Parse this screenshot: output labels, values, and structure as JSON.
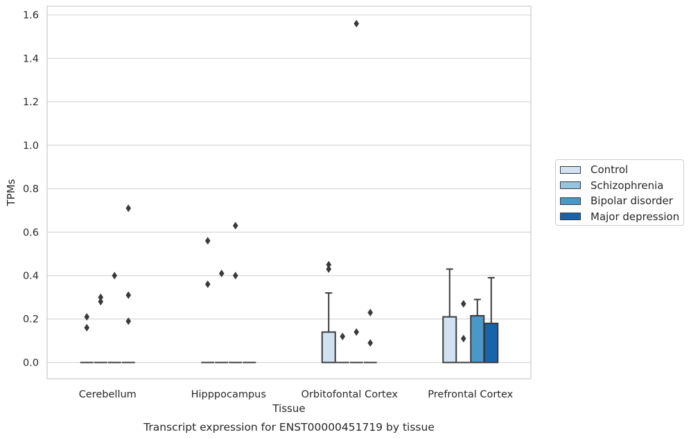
{
  "chart_data": {
    "type": "boxplot",
    "title": "Transcript expression for ENST00000451719 by tissue",
    "xlabel": "Tissue",
    "ylabel": "TPMs",
    "ylim": [
      -0.075,
      1.64
    ],
    "yticks": [
      "0.0",
      "0.2",
      "0.4",
      "0.6",
      "0.8",
      "1.0",
      "1.2",
      "1.4",
      "1.6"
    ],
    "ytick_values": [
      0,
      0.2,
      0.4,
      0.6,
      0.8,
      1.0,
      1.2,
      1.4,
      1.6
    ],
    "grid": true,
    "legend_position": "right",
    "categories": [
      "Cerebellum",
      "Hipppocampus",
      "Orbitofontal Cortex",
      "Prefrontal Cortex"
    ],
    "series": [
      {
        "name": "Control",
        "color": "#d0e1f2",
        "boxes": [
          {
            "q1": 0,
            "median": 0,
            "q3": 0,
            "whislo": 0,
            "whishi": 0,
            "fliers": [
              0.16,
              0.21
            ]
          },
          {
            "q1": 0,
            "median": 0,
            "q3": 0,
            "whislo": 0,
            "whishi": 0,
            "fliers": [
              0.36,
              0.56
            ]
          },
          {
            "q1": 0,
            "median": 0,
            "q3": 0.14,
            "whislo": 0,
            "whishi": 0.32,
            "fliers": [
              0.43,
              0.45
            ]
          },
          {
            "q1": 0,
            "median": 0,
            "q3": 0.21,
            "whislo": 0,
            "whishi": 0.43,
            "fliers": []
          }
        ]
      },
      {
        "name": "Schizophrenia",
        "color": "#94c4df",
        "boxes": [
          {
            "q1": 0,
            "median": 0,
            "q3": 0,
            "whislo": 0,
            "whishi": 0,
            "fliers": [
              0.28,
              0.3
            ]
          },
          {
            "q1": 0,
            "median": 0,
            "q3": 0,
            "whislo": 0,
            "whishi": 0,
            "fliers": [
              0.41
            ]
          },
          {
            "q1": 0,
            "median": 0,
            "q3": 0,
            "whislo": 0,
            "whishi": 0,
            "fliers": [
              0.12
            ]
          },
          {
            "q1": 0,
            "median": 0,
            "q3": 0,
            "whislo": 0,
            "whishi": 0,
            "fliers": [
              0.11,
              0.27
            ]
          }
        ]
      },
      {
        "name": "Bipolar disorder",
        "color": "#4a98c9",
        "boxes": [
          {
            "q1": 0,
            "median": 0,
            "q3": 0,
            "whislo": 0,
            "whishi": 0,
            "fliers": [
              0.4
            ]
          },
          {
            "q1": 0,
            "median": 0,
            "q3": 0,
            "whislo": 0,
            "whishi": 0,
            "fliers": [
              0.4,
              0.63
            ]
          },
          {
            "q1": 0,
            "median": 0,
            "q3": 0,
            "whislo": 0,
            "whishi": 0,
            "fliers": [
              0.14,
              1.56
            ]
          },
          {
            "q1": 0,
            "median": 0,
            "q3": 0.215,
            "whislo": 0,
            "whishi": 0.29,
            "fliers": []
          }
        ]
      },
      {
        "name": "Major depression",
        "color": "#1764ab",
        "boxes": [
          {
            "q1": 0,
            "median": 0,
            "q3": 0,
            "whislo": 0,
            "whishi": 0,
            "fliers": [
              0.19,
              0.31,
              0.71
            ]
          },
          {
            "q1": 0,
            "median": 0,
            "q3": 0,
            "whislo": 0,
            "whishi": 0,
            "fliers": []
          },
          {
            "q1": 0,
            "median": 0,
            "q3": 0,
            "whislo": 0,
            "whishi": 0,
            "fliers": [
              0.09,
              0.23
            ]
          },
          {
            "q1": 0,
            "median": 0,
            "q3": 0.18,
            "whislo": 0,
            "whishi": 0.39,
            "fliers": []
          }
        ]
      }
    ]
  }
}
